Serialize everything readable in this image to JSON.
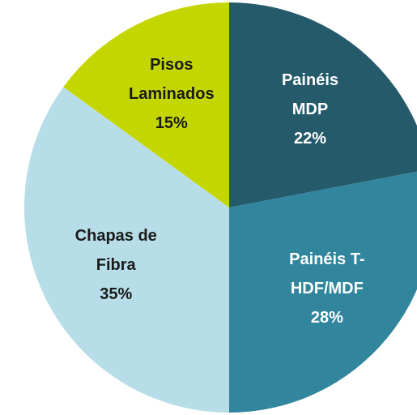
{
  "chart_data": {
    "type": "pie",
    "categories": [
      "Painéis MDP",
      "Painéis T-HDF/MDF",
      "Chapas de Fibra",
      "Pisos Laminados"
    ],
    "values": [
      22,
      28,
      35,
      15
    ],
    "value_labels": [
      "22%",
      "28%",
      "35%",
      "15%"
    ],
    "colors": [
      "#255a6b",
      "#31859c",
      "#b7dee8",
      "#c4d600"
    ],
    "label_colors": [
      "#ffffff",
      "#ffffff",
      "#1a1a1a",
      "#1a1a1a"
    ]
  }
}
